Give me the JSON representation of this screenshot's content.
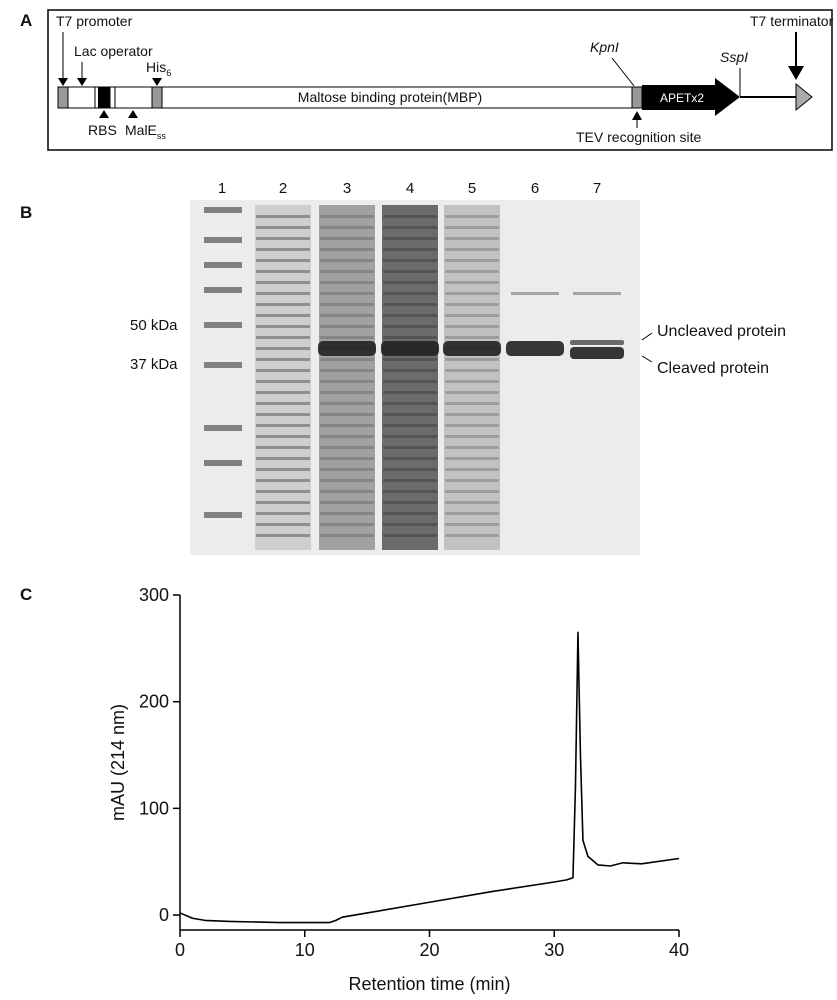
{
  "panel_a": {
    "letter": "A",
    "t7_promoter": "T7 promoter",
    "lac_operator": "Lac operator",
    "rbs": "RBS",
    "male": {
      "text": "MalE",
      "sub": "ss"
    },
    "his": {
      "text": "His",
      "sub": "6"
    },
    "mbp": "Maltose binding protein(MBP)",
    "kpni": "KpnI",
    "apetx2": "APETx2",
    "sspi": "SspI",
    "t7_terminator": "T7 terminator",
    "tev": "TEV recognition site"
  },
  "panel_b": {
    "letter": "B",
    "lanes": [
      "1",
      "2",
      "3",
      "4",
      "5",
      "6",
      "7"
    ],
    "markers": [
      "50 kDa",
      "37 kDa"
    ],
    "uncleaved": "Uncleaved protein",
    "cleaved": "Cleaved protein"
  },
  "panel_c": {
    "letter": "C"
  },
  "chart_data": {
    "type": "line",
    "xlabel": "Retention time (min)",
    "ylabel": "mAU (214 nm)",
    "x": [
      0,
      1,
      2,
      4,
      8,
      12,
      12.5,
      13,
      15,
      20,
      25,
      30,
      31,
      31.5,
      31.7,
      31.9,
      32.1,
      32.3,
      32.7,
      33.5,
      34.5,
      35.5,
      37,
      40
    ],
    "values": [
      2,
      -3,
      -5,
      -6,
      -7,
      -7,
      -5,
      -2,
      2,
      12,
      22,
      31,
      33,
      35,
      120,
      265,
      150,
      70,
      55,
      47,
      46,
      49,
      48,
      53
    ],
    "color": "#000000",
    "xlim": [
      0,
      40
    ],
    "ylim": [
      -14,
      300
    ],
    "xticks": [
      0,
      10,
      20,
      30,
      40
    ],
    "yticks": [
      0,
      100,
      200,
      300
    ]
  }
}
